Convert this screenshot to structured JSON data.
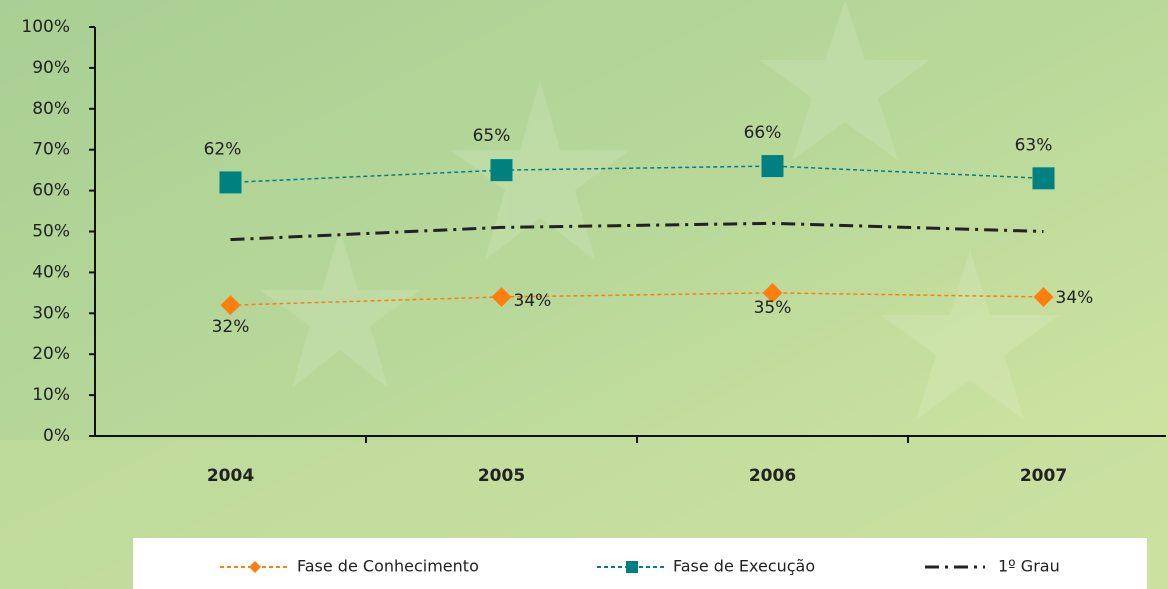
{
  "chart_data": {
    "type": "line",
    "categories": [
      "2004",
      "2005",
      "2006",
      "2007"
    ],
    "series": [
      {
        "name": "Fase de Conhecimento",
        "color": "#ff7f0e",
        "marker": "diamond",
        "dash": "dashed",
        "values": [
          32,
          34,
          35,
          34
        ],
        "value_labels": [
          "32%",
          "34%",
          "35%",
          "34%"
        ]
      },
      {
        "name": "Fase de Execução",
        "color": "#008080",
        "marker": "square",
        "dash": "dashed",
        "values": [
          62,
          65,
          66,
          63
        ],
        "value_labels": [
          "62%",
          "65%",
          "66%",
          "63%"
        ]
      },
      {
        "name": "1º Grau",
        "color": "#222222",
        "marker": "none",
        "dash": "dashdot",
        "values": [
          48,
          51,
          52,
          50
        ]
      }
    ],
    "ylim": [
      0,
      100
    ],
    "yticks": [
      {
        "value": 0,
        "label": "0%"
      },
      {
        "value": 10,
        "label": "10%"
      },
      {
        "value": 20,
        "label": "20%"
      },
      {
        "value": 30,
        "label": "30%"
      },
      {
        "value": 40,
        "label": "40%"
      },
      {
        "value": 50,
        "label": "50%"
      },
      {
        "value": 60,
        "label": "60%"
      },
      {
        "value": 70,
        "label": "70%"
      },
      {
        "value": 80,
        "label": "80%"
      },
      {
        "value": 90,
        "label": "90%"
      },
      {
        "value": 100,
        "label": "100%"
      }
    ],
    "legend": "bottom"
  }
}
